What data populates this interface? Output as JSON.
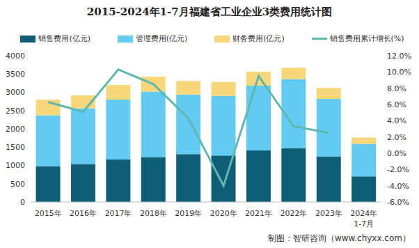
{
  "chart_data": {
    "type": "bar",
    "title": "2015-2024年1-7月福建省工业企业3类费用统计图",
    "source": "制图：智研咨询（www.chyxx.com）",
    "categories": [
      "2015年",
      "2016年",
      "2017年",
      "2018年",
      "2019年",
      "2020年",
      "2021年",
      "2022年",
      "2023年",
      "2024年\n1-7月"
    ],
    "stacked": true,
    "grid": false,
    "legend": "top",
    "series": [
      {
        "name": "销售费用(亿元)",
        "type": "bar",
        "color": "#0f5e78",
        "values": [
          980,
          1040,
          1160,
          1230,
          1310,
          1270,
          1410,
          1470,
          1250,
          700
        ]
      },
      {
        "name": "管理费用(亿元)",
        "type": "bar",
        "color": "#62cbf3",
        "values": [
          1390,
          1520,
          1640,
          1790,
          1630,
          1630,
          1770,
          1890,
          1570,
          890
        ]
      },
      {
        "name": "财务费用(亿元)",
        "type": "bar",
        "color": "#f8d67a",
        "values": [
          430,
          360,
          400,
          410,
          370,
          380,
          380,
          310,
          300,
          170
        ]
      },
      {
        "name": "销售费用累计增长(%)",
        "type": "line",
        "axis": "y2",
        "color": "#5fb8ae",
        "marker": "none",
        "values": [
          6.3,
          5.1,
          10.3,
          8.5,
          4.3,
          -4.0,
          9.5,
          3.3,
          2.5,
          null
        ]
      }
    ],
    "ylim": [
      0,
      4000
    ],
    "yticks": [
      0,
      500,
      1000,
      1500,
      2000,
      2500,
      3000,
      3500,
      4000
    ],
    "y2lim": [
      -6,
      12
    ],
    "y2ticks": [
      {
        "value": -6,
        "label": "-6.0%"
      },
      {
        "value": -4,
        "label": "-4.0%"
      },
      {
        "value": -2,
        "label": "-2.0%"
      },
      {
        "value": 0,
        "label": "0.0%"
      },
      {
        "value": 2,
        "label": "2.0%"
      },
      {
        "value": 4,
        "label": "4.0%"
      },
      {
        "value": 6,
        "label": "6.0%"
      },
      {
        "value": 8,
        "label": "8.0%"
      },
      {
        "value": 10,
        "label": "10.0%"
      },
      {
        "value": 12,
        "label": "12.0%"
      }
    ]
  }
}
